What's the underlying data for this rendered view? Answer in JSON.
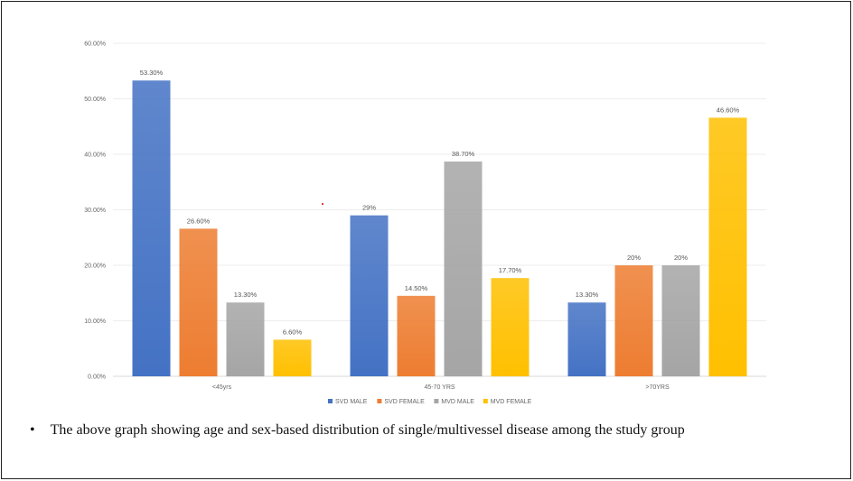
{
  "chart_data": {
    "type": "bar",
    "title": "",
    "xlabel": "",
    "ylabel": "",
    "ylim": [
      0,
      60
    ],
    "yticks": [
      "0.00%",
      "10.00%",
      "20.00%",
      "30.00%",
      "40.00%",
      "50.00%",
      "60.00%"
    ],
    "grid": true,
    "legend_position": "bottom",
    "categories": [
      "<45yrs",
      "45-70 YRS",
      ">70YRS"
    ],
    "series": [
      {
        "name": "SVD MALE",
        "color": "#4472C4",
        "values": [
          53.3,
          29,
          13.3
        ],
        "labels": [
          "53.30%",
          "29%",
          "13.30%"
        ]
      },
      {
        "name": "SVD FEMALE",
        "color": "#ED7D31",
        "values": [
          26.6,
          14.5,
          20
        ],
        "labels": [
          "26.60%",
          "14.50%",
          "20%"
        ]
      },
      {
        "name": "MVD MALE",
        "color": "#A5A5A5",
        "values": [
          13.3,
          38.7,
          20
        ],
        "labels": [
          "13.30%",
          "38.70%",
          "20%"
        ]
      },
      {
        "name": "MVD FEMALE",
        "color": "#FFC000",
        "values": [
          6.6,
          17.7,
          46.6
        ],
        "labels": [
          "6.60%",
          "17.70%",
          "46.60%"
        ]
      }
    ]
  },
  "caption": {
    "bullet": "•",
    "text": "The above graph showing age and sex-based distribution of single/multivessel disease among the study group"
  }
}
